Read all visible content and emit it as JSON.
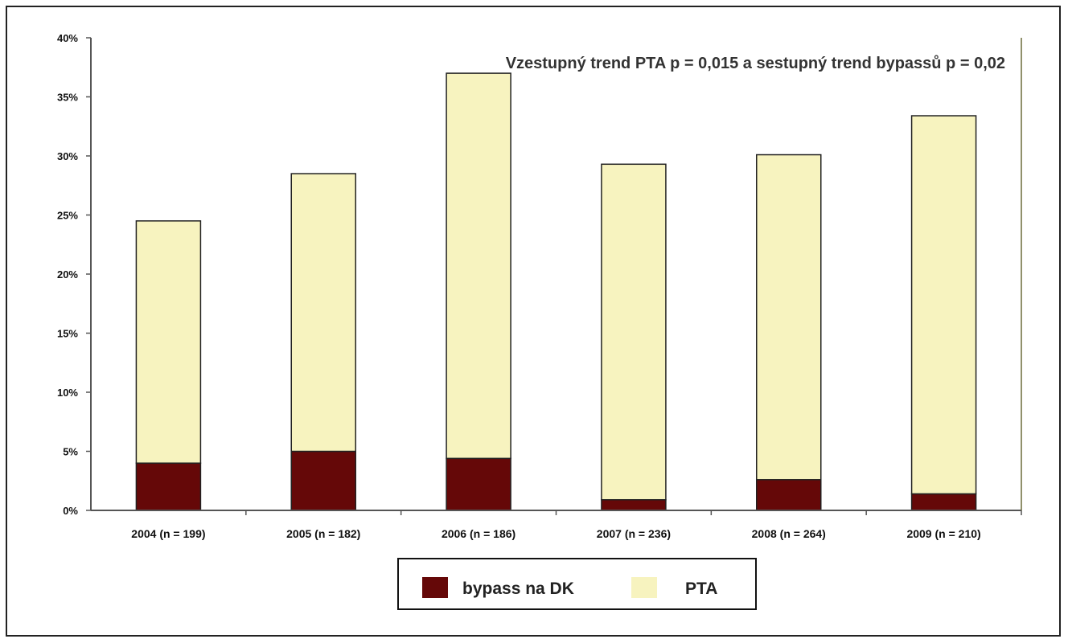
{
  "chart_data": {
    "type": "bar",
    "stacked": true,
    "categories": [
      "2004 (n = 199)",
      "2005 (n = 182)",
      "2006 (n = 186)",
      "2007 (n = 236)",
      "2008 (n = 264)",
      "2009 (n = 210)"
    ],
    "series": [
      {
        "name": "bypass na DK",
        "values": [
          4.0,
          5.0,
          4.4,
          0.9,
          2.6,
          1.4
        ],
        "color": "#650808"
      },
      {
        "name": "PTA",
        "values": [
          20.5,
          23.5,
          32.6,
          28.4,
          27.5,
          32.0
        ],
        "color": "#f7f3bf"
      }
    ],
    "yticks": [
      "0%",
      "5%",
      "10%",
      "15%",
      "20%",
      "25%",
      "30%",
      "35%",
      "40%"
    ],
    "ylim": [
      0,
      40
    ],
    "annotation": "Vzestupný trend PTA p = 0,015 a sestupný trend bypassů p = 0,02",
    "legend_position": "bottom",
    "grid": false
  }
}
